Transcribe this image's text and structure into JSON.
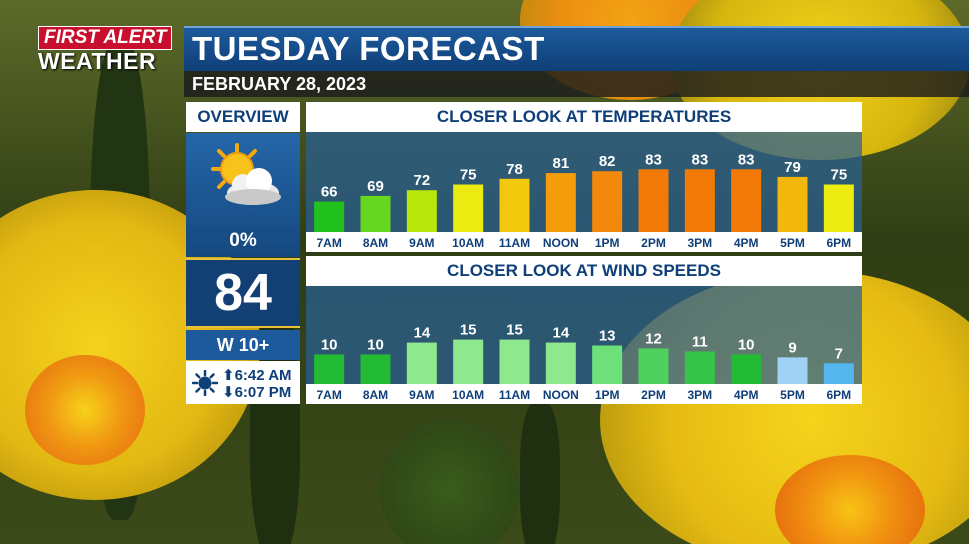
{
  "branding": {
    "line1": "FIRST ALERT",
    "line2": "WEATHER"
  },
  "header": {
    "title": "TUESDAY FORECAST",
    "date": "FEBRUARY 28, 2023"
  },
  "overview": {
    "label": "OVERVIEW",
    "icon": "partly-sunny-icon",
    "precip": "0%",
    "high": "84",
    "wind": "W  10+",
    "sunrise": "6:42 AM",
    "sunset": "6:07 PM"
  },
  "colors": {
    "brand_blue": "#1d5a9c",
    "brand_red": "#c8102e",
    "panel_blue": "#2a5f95"
  },
  "chart_data": [
    {
      "type": "bar",
      "title": "CLOSER LOOK AT TEMPERATURES",
      "categories": [
        "7AM",
        "8AM",
        "9AM",
        "10AM",
        "11AM",
        "NOON",
        "1PM",
        "2PM",
        "3PM",
        "4PM",
        "5PM",
        "6PM"
      ],
      "values": [
        66,
        69,
        72,
        75,
        78,
        81,
        82,
        83,
        83,
        83,
        79,
        75
      ],
      "ylim": [
        50,
        90
      ],
      "colors": [
        "#22c21e",
        "#66d620",
        "#b8e60a",
        "#ebeb12",
        "#f2c80c",
        "#f39c0c",
        "#f3890c",
        "#f47a08",
        "#f47a08",
        "#f47a08",
        "#f2b70c",
        "#ecec10"
      ]
    },
    {
      "type": "bar",
      "title": "CLOSER LOOK AT WIND SPEEDS",
      "categories": [
        "7AM",
        "8AM",
        "9AM",
        "10AM",
        "11AM",
        "NOON",
        "1PM",
        "2PM",
        "3PM",
        "4PM",
        "5PM",
        "6PM"
      ],
      "values": [
        10,
        10,
        14,
        15,
        15,
        14,
        13,
        12,
        11,
        10,
        9,
        7
      ],
      "ylim": [
        0,
        25
      ],
      "colors": [
        "#22bb33",
        "#22bb33",
        "#8ee88e",
        "#8ee88e",
        "#8ee88e",
        "#8ee88e",
        "#6ee07a",
        "#4fd160",
        "#36c44a",
        "#22bb33",
        "#9fd2f5",
        "#55b6ee"
      ]
    }
  ]
}
